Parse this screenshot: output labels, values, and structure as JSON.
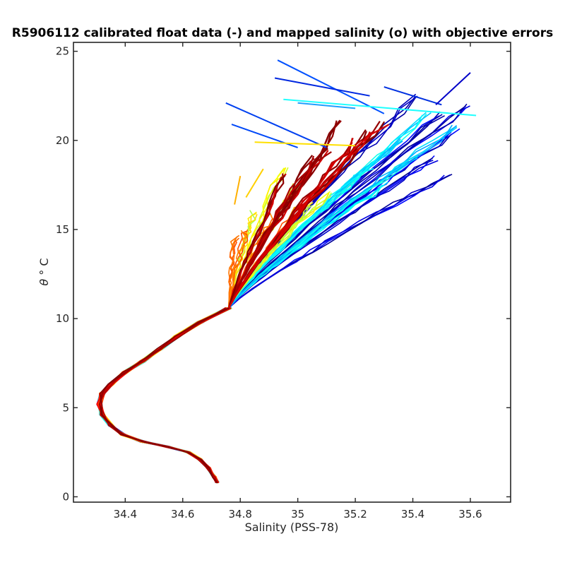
{
  "chart_data": {
    "type": "line",
    "title": "R5906112 calibrated float data (-) and mapped salinity (o) with objective errors",
    "xlabel": "Salinity (PSS-78)",
    "ylabel_symbol": "θ",
    "ylabel_unit": "° C",
    "xlim": [
      34.22,
      35.74
    ],
    "ylim": [
      -0.3,
      25.5
    ],
    "xticks": [
      34.4,
      34.6,
      34.8,
      35,
      35.2,
      35.4,
      35.6
    ],
    "xtick_labels": [
      "34.4",
      "34.6",
      "34.8",
      "35",
      "35.2",
      "35.4",
      "35.6"
    ],
    "yticks": [
      0,
      5,
      10,
      15,
      20,
      25
    ],
    "ytick_labels": [
      "0",
      "5",
      "10",
      "15",
      "20",
      "25"
    ],
    "grid": false,
    "colormap": "jet",
    "color_encodes": "profile number (early = blue, late = dark red)",
    "deep_branch": [
      [
        34.72,
        0.8
      ],
      [
        34.71,
        1.1
      ],
      [
        34.69,
        1.6
      ],
      [
        34.66,
        2.1
      ],
      [
        34.62,
        2.5
      ],
      [
        34.55,
        2.8
      ],
      [
        34.46,
        3.1
      ],
      [
        34.39,
        3.5
      ],
      [
        34.35,
        4.0
      ],
      [
        34.32,
        4.6
      ],
      [
        34.31,
        5.2
      ],
      [
        34.32,
        5.8
      ],
      [
        34.35,
        6.3
      ],
      [
        34.4,
        7.0
      ],
      [
        34.46,
        7.6
      ],
      [
        34.52,
        8.3
      ],
      [
        34.58,
        9.0
      ],
      [
        34.66,
        9.8
      ],
      [
        34.76,
        10.6
      ]
    ],
    "upper_branch_start": [
      34.76,
      10.6
    ],
    "upper_branch_tips": {
      "early_blue": [
        [
          35.52,
          18.0
        ],
        [
          35.55,
          20.5
        ],
        [
          35.6,
          22.0
        ],
        [
          35.48,
          19.0
        ],
        [
          35.5,
          21.5
        ],
        [
          35.42,
          22.5
        ]
      ],
      "cyan": [
        [
          35.35,
          20.0
        ],
        [
          35.45,
          21.5
        ],
        [
          35.3,
          17.5
        ],
        [
          35.4,
          19.0
        ],
        [
          35.25,
          18.5
        ],
        [
          35.55,
          20.8
        ]
      ],
      "yellow_green": [
        [
          35.0,
          17.5
        ],
        [
          34.95,
          18.5
        ],
        [
          35.1,
          17.0
        ],
        [
          34.85,
          16.0
        ],
        [
          35.05,
          16.5
        ]
      ],
      "orange": [
        [
          34.92,
          15.8
        ],
        [
          34.82,
          15.0
        ],
        [
          35.02,
          16.5
        ],
        [
          34.78,
          14.6
        ]
      ],
      "dark_red": [
        [
          35.15,
          21.0
        ],
        [
          35.2,
          20.0
        ],
        [
          35.1,
          19.5
        ],
        [
          35.25,
          20.5
        ],
        [
          35.05,
          19.0
        ],
        [
          34.95,
          18.0
        ],
        [
          35.3,
          21.0
        ]
      ]
    },
    "stray_segments": [
      {
        "color": "#0050ff",
        "points": [
          [
            34.93,
            24.5
          ],
          [
            35.3,
            21.5
          ]
        ]
      },
      {
        "color": "#0040f0",
        "points": [
          [
            34.75,
            22.1
          ],
          [
            35.1,
            19.6
          ]
        ]
      },
      {
        "color": "#0048f8",
        "points": [
          [
            34.77,
            20.9
          ],
          [
            35.0,
            19.6
          ]
        ]
      },
      {
        "color": "#1f9fff",
        "points": [
          [
            35.0,
            22.1
          ],
          [
            35.2,
            21.8
          ]
        ]
      },
      {
        "color": "#1fffff",
        "points": [
          [
            34.95,
            22.3
          ],
          [
            35.62,
            21.4
          ]
        ]
      },
      {
        "color": "#ffe000",
        "points": [
          [
            34.85,
            19.9
          ],
          [
            35.2,
            19.7
          ]
        ]
      },
      {
        "color": "#ffd000",
        "points": [
          [
            34.82,
            16.8
          ],
          [
            34.88,
            18.4
          ]
        ]
      },
      {
        "color": "#ffb000",
        "points": [
          [
            34.78,
            16.4
          ],
          [
            34.8,
            18.0
          ]
        ]
      },
      {
        "color": "#0030e0",
        "points": [
          [
            35.3,
            23.0
          ],
          [
            35.5,
            22.0
          ]
        ]
      },
      {
        "color": "#0000c8",
        "points": [
          [
            35.6,
            23.8
          ],
          [
            35.48,
            22.0
          ]
        ]
      },
      {
        "color": "#0028e0",
        "points": [
          [
            34.92,
            23.5
          ],
          [
            35.25,
            22.5
          ]
        ]
      }
    ]
  }
}
